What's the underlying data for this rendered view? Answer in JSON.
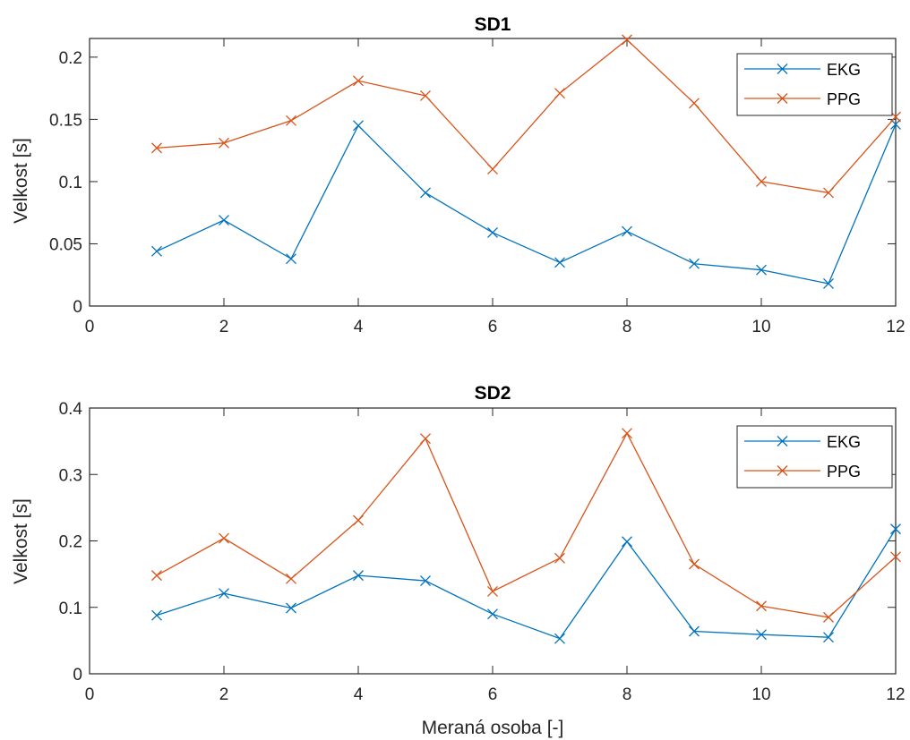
{
  "chart_data": [
    {
      "type": "line",
      "title": "SD1",
      "xlabel": "",
      "ylabel": "Velkost [s]",
      "xlim": [
        0,
        12
      ],
      "ylim": [
        0,
        0.215
      ],
      "xticks": [
        0,
        2,
        4,
        6,
        8,
        10,
        12
      ],
      "xtick_labels": [
        "0",
        "2",
        "4",
        "6",
        "8",
        "10",
        "12"
      ],
      "yticks": [
        0,
        0.05,
        0.1,
        0.15,
        0.2
      ],
      "ytick_labels": [
        "0",
        "0.05",
        "0.1",
        "0.15",
        "0.2"
      ],
      "grid": false,
      "legend_position": "top-right",
      "x": [
        1,
        2,
        3,
        4,
        5,
        6,
        7,
        8,
        9,
        10,
        11,
        12
      ],
      "series": [
        {
          "name": "EKG",
          "color": "#0072BD",
          "marker": "x",
          "values": [
            0.044,
            0.069,
            0.038,
            0.145,
            0.091,
            0.059,
            0.035,
            0.06,
            0.034,
            0.029,
            0.018,
            0.146
          ]
        },
        {
          "name": "PPG",
          "color": "#D95319",
          "marker": "x",
          "values": [
            0.127,
            0.131,
            0.149,
            0.181,
            0.169,
            0.11,
            0.171,
            0.214,
            0.163,
            0.1,
            0.091,
            0.152
          ]
        }
      ]
    },
    {
      "type": "line",
      "title": "SD2",
      "xlabel": "Meraná osoba [-]",
      "ylabel": "Velkost [s]",
      "xlim": [
        0,
        12
      ],
      "ylim": [
        0,
        0.4
      ],
      "xticks": [
        0,
        2,
        4,
        6,
        8,
        10,
        12
      ],
      "xtick_labels": [
        "0",
        "2",
        "4",
        "6",
        "8",
        "10",
        "12"
      ],
      "yticks": [
        0,
        0.1,
        0.2,
        0.3,
        0.4
      ],
      "ytick_labels": [
        "0",
        "0.1",
        "0.2",
        "0.3",
        "0.4"
      ],
      "grid": false,
      "legend_position": "top-right",
      "x": [
        1,
        2,
        3,
        4,
        5,
        6,
        7,
        8,
        9,
        10,
        11,
        12
      ],
      "series": [
        {
          "name": "EKG",
          "color": "#0072BD",
          "marker": "x",
          "values": [
            0.088,
            0.121,
            0.099,
            0.148,
            0.14,
            0.09,
            0.053,
            0.199,
            0.064,
            0.059,
            0.055,
            0.218
          ]
        },
        {
          "name": "PPG",
          "color": "#D95319",
          "marker": "x",
          "values": [
            0.148,
            0.204,
            0.143,
            0.231,
            0.354,
            0.124,
            0.174,
            0.362,
            0.165,
            0.102,
            0.085,
            0.176
          ]
        }
      ]
    }
  ]
}
